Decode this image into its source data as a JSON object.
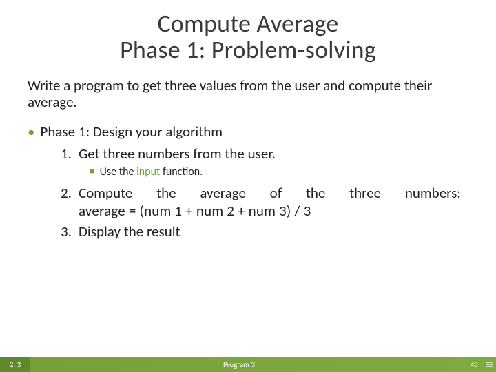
{
  "title": {
    "line1": "Compute Average",
    "line2": "Phase 1: Problem-solving"
  },
  "intro": "Write a program to get three values from the user and compute their average.",
  "phase": "Phase 1: Design your algorithm",
  "step1": {
    "num": "1.",
    "text": "Get three numbers from the user."
  },
  "sub1": {
    "pre": "Use the ",
    "kw": "input",
    "post": " function."
  },
  "step2": {
    "num": "2.",
    "w1": "Compute",
    "w2": "the",
    "w3": "average",
    "w4": "of",
    "w5": "the",
    "w6": "three",
    "w7": "numbers:",
    "formula": "average = (num 1 + num 2 + num 3) / 3"
  },
  "step3": {
    "num": "3.",
    "text": "Display the result"
  },
  "footer": {
    "section": "2. 3",
    "mid": "Program 3",
    "page": "45"
  },
  "colors": {
    "accent": "#6da63f",
    "footer_bg": "#7aa33a",
    "footer_dark": "#5e8a2c",
    "text": "#222222"
  }
}
